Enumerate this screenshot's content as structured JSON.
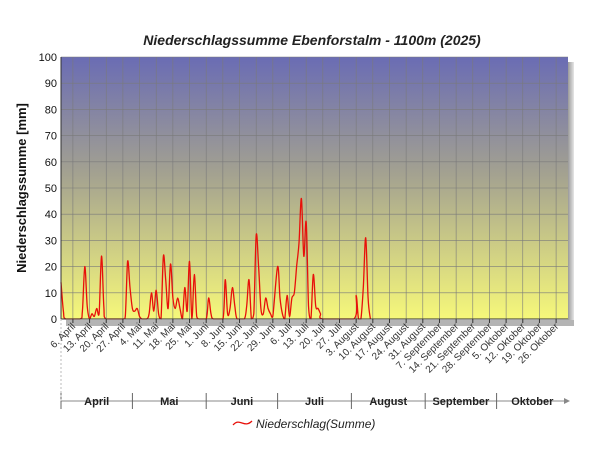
{
  "chart_data": {
    "type": "line",
    "title": "Niederschlagssumme Ebenforstalm - 1100m (2025)",
    "ylabel": "Niederschlagssumme [mm]",
    "xlabel": "",
    "ylim": [
      0,
      100
    ],
    "yticks": [
      0,
      10,
      20,
      30,
      40,
      50,
      60,
      70,
      80,
      90,
      100
    ],
    "grid": true,
    "legend_position": "bottom-center",
    "colors": {
      "series": "#e8100a",
      "gradient_top": "#6a6cb4",
      "gradient_mid": "#a4a290",
      "gradient_bottom": "#f6f87a",
      "grid": "#7a7a7a"
    },
    "x_date_range": [
      "2025-04-01",
      "2025-10-31"
    ],
    "xticks": [
      {
        "date": "2025-04-06",
        "label": "6. April"
      },
      {
        "date": "2025-04-13",
        "label": "13. April"
      },
      {
        "date": "2025-04-20",
        "label": "20. April"
      },
      {
        "date": "2025-04-27",
        "label": "27. April"
      },
      {
        "date": "2025-05-04",
        "label": "4. Mai"
      },
      {
        "date": "2025-05-11",
        "label": "11. Mai"
      },
      {
        "date": "2025-05-18",
        "label": "18. Mai"
      },
      {
        "date": "2025-05-25",
        "label": "25. Mai"
      },
      {
        "date": "2025-06-01",
        "label": "1. Juni"
      },
      {
        "date": "2025-06-08",
        "label": "8. Juni"
      },
      {
        "date": "2025-06-15",
        "label": "15. Juni"
      },
      {
        "date": "2025-06-22",
        "label": "22. Juni"
      },
      {
        "date": "2025-06-29",
        "label": "29. Juni"
      },
      {
        "date": "2025-07-06",
        "label": "6. Juli"
      },
      {
        "date": "2025-07-13",
        "label": "13. Juli"
      },
      {
        "date": "2025-07-20",
        "label": "20. Juli"
      },
      {
        "date": "2025-07-27",
        "label": "27. Juli"
      },
      {
        "date": "2025-08-03",
        "label": "3. August"
      },
      {
        "date": "2025-08-10",
        "label": "10. August"
      },
      {
        "date": "2025-08-17",
        "label": "17. August"
      },
      {
        "date": "2025-08-24",
        "label": "24. August"
      },
      {
        "date": "2025-08-31",
        "label": "31. August"
      },
      {
        "date": "2025-09-07",
        "label": "7. September"
      },
      {
        "date": "2025-09-14",
        "label": "14. September"
      },
      {
        "date": "2025-09-21",
        "label": "21. September"
      },
      {
        "date": "2025-09-28",
        "label": "28. September"
      },
      {
        "date": "2025-10-05",
        "label": "5. Oktober"
      },
      {
        "date": "2025-10-12",
        "label": "12. Oktober"
      },
      {
        "date": "2025-10-19",
        "label": "19. Oktober"
      },
      {
        "date": "2025-10-26",
        "label": "26. Oktober"
      }
    ],
    "months": [
      {
        "label": "April",
        "start": "2025-04-01",
        "end": "2025-04-30"
      },
      {
        "label": "Mai",
        "start": "2025-05-01",
        "end": "2025-05-31"
      },
      {
        "label": "Juni",
        "start": "2025-06-01",
        "end": "2025-06-30"
      },
      {
        "label": "Juli",
        "start": "2025-07-01",
        "end": "2025-07-31"
      },
      {
        "label": "August",
        "start": "2025-08-01",
        "end": "2025-08-31"
      },
      {
        "label": "September",
        "start": "2025-09-01",
        "end": "2025-09-30"
      },
      {
        "label": "Oktober",
        "start": "2025-10-01",
        "end": "2025-10-31"
      }
    ],
    "series": [
      {
        "name": "Niederschlag(Summe)",
        "points": [
          [
            "2025-04-01",
            14
          ],
          [
            "2025-04-02",
            3
          ],
          [
            "2025-04-03",
            0
          ],
          [
            "2025-04-09",
            0
          ],
          [
            "2025-04-10",
            3
          ],
          [
            "2025-04-11",
            20
          ],
          [
            "2025-04-12",
            5
          ],
          [
            "2025-04-13",
            0
          ],
          [
            "2025-04-14",
            2
          ],
          [
            "2025-04-15",
            1
          ],
          [
            "2025-04-16",
            4
          ],
          [
            "2025-04-17",
            2
          ],
          [
            "2025-04-18",
            24
          ],
          [
            "2025-04-19",
            5
          ],
          [
            "2025-04-20",
            0
          ],
          [
            "2025-04-27",
            0
          ],
          [
            "2025-04-28",
            1
          ],
          [
            "2025-04-29",
            22
          ],
          [
            "2025-04-30",
            12
          ],
          [
            "2025-05-01",
            4
          ],
          [
            "2025-05-02",
            3
          ],
          [
            "2025-05-03",
            4
          ],
          [
            "2025-05-04",
            1
          ],
          [
            "2025-05-05",
            0
          ],
          [
            "2025-05-07",
            0
          ],
          [
            "2025-05-08",
            2
          ],
          [
            "2025-05-09",
            10
          ],
          [
            "2025-05-10",
            3
          ],
          [
            "2025-05-11",
            11
          ],
          [
            "2025-05-12",
            2
          ],
          [
            "2025-05-13",
            0
          ],
          [
            "2025-05-14",
            24
          ],
          [
            "2025-05-15",
            15
          ],
          [
            "2025-05-16",
            4
          ],
          [
            "2025-05-17",
            21
          ],
          [
            "2025-05-18",
            8
          ],
          [
            "2025-05-19",
            4
          ],
          [
            "2025-05-20",
            8
          ],
          [
            "2025-05-21",
            4
          ],
          [
            "2025-05-22",
            0
          ],
          [
            "2025-05-23",
            12
          ],
          [
            "2025-05-24",
            3
          ],
          [
            "2025-05-25",
            22
          ],
          [
            "2025-05-26",
            0
          ],
          [
            "2025-05-27",
            17
          ],
          [
            "2025-05-28",
            1
          ],
          [
            "2025-05-29",
            0
          ],
          [
            "2025-06-01",
            0
          ],
          [
            "2025-06-02",
            8
          ],
          [
            "2025-06-03",
            2
          ],
          [
            "2025-06-04",
            0
          ],
          [
            "2025-06-08",
            0
          ],
          [
            "2025-06-09",
            15
          ],
          [
            "2025-06-10",
            2
          ],
          [
            "2025-06-11",
            4
          ],
          [
            "2025-06-12",
            12
          ],
          [
            "2025-06-13",
            5
          ],
          [
            "2025-06-14",
            0
          ],
          [
            "2025-06-17",
            0
          ],
          [
            "2025-06-18",
            5
          ],
          [
            "2025-06-19",
            15
          ],
          [
            "2025-06-20",
            0
          ],
          [
            "2025-06-21",
            2
          ],
          [
            "2025-06-22",
            32
          ],
          [
            "2025-06-23",
            20
          ],
          [
            "2025-06-24",
            4
          ],
          [
            "2025-06-25",
            2
          ],
          [
            "2025-06-26",
            8
          ],
          [
            "2025-06-27",
            4
          ],
          [
            "2025-06-28",
            2
          ],
          [
            "2025-06-29",
            1
          ],
          [
            "2025-07-01",
            20
          ],
          [
            "2025-07-02",
            8
          ],
          [
            "2025-07-03",
            2
          ],
          [
            "2025-07-04",
            0
          ],
          [
            "2025-07-05",
            9
          ],
          [
            "2025-07-06",
            1
          ],
          [
            "2025-07-07",
            8
          ],
          [
            "2025-07-08",
            10
          ],
          [
            "2025-07-09",
            20
          ],
          [
            "2025-07-10",
            29
          ],
          [
            "2025-07-11",
            46
          ],
          [
            "2025-07-12",
            24
          ],
          [
            "2025-07-13",
            37
          ],
          [
            "2025-07-14",
            5
          ],
          [
            "2025-07-15",
            0
          ],
          [
            "2025-07-16",
            17
          ],
          [
            "2025-07-17",
            5
          ],
          [
            "2025-07-18",
            4
          ],
          [
            "2025-07-19",
            2
          ],
          [
            "2025-07-20",
            0
          ],
          [
            "2025-08-02",
            0
          ],
          [
            "2025-08-03",
            9
          ],
          [
            "2025-08-04",
            0
          ],
          [
            "2025-08-05",
            0
          ],
          [
            "2025-08-06",
            12
          ],
          [
            "2025-08-07",
            31
          ],
          [
            "2025-08-08",
            8
          ],
          [
            "2025-08-09",
            0
          ]
        ]
      }
    ]
  }
}
